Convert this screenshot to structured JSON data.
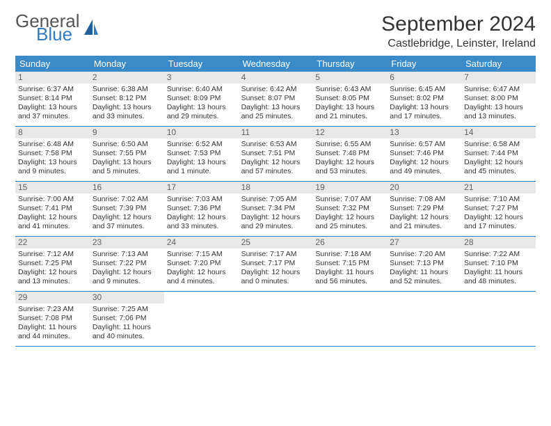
{
  "logo": {
    "general": "General",
    "blue": "Blue"
  },
  "title": "September 2024",
  "location": "Castlebridge, Leinster, Ireland",
  "colors": {
    "header_bg": "#3b8bc9",
    "accent": "#2d7cc1",
    "daynum_bg": "#e8e8e8",
    "text": "#333333"
  },
  "day_names": [
    "Sunday",
    "Monday",
    "Tuesday",
    "Wednesday",
    "Thursday",
    "Friday",
    "Saturday"
  ],
  "days": [
    {
      "n": 1,
      "sunrise": "6:37 AM",
      "sunset": "8:14 PM",
      "daylight": "13 hours and 37 minutes."
    },
    {
      "n": 2,
      "sunrise": "6:38 AM",
      "sunset": "8:12 PM",
      "daylight": "13 hours and 33 minutes."
    },
    {
      "n": 3,
      "sunrise": "6:40 AM",
      "sunset": "8:09 PM",
      "daylight": "13 hours and 29 minutes."
    },
    {
      "n": 4,
      "sunrise": "6:42 AM",
      "sunset": "8:07 PM",
      "daylight": "13 hours and 25 minutes."
    },
    {
      "n": 5,
      "sunrise": "6:43 AM",
      "sunset": "8:05 PM",
      "daylight": "13 hours and 21 minutes."
    },
    {
      "n": 6,
      "sunrise": "6:45 AM",
      "sunset": "8:02 PM",
      "daylight": "13 hours and 17 minutes."
    },
    {
      "n": 7,
      "sunrise": "6:47 AM",
      "sunset": "8:00 PM",
      "daylight": "13 hours and 13 minutes."
    },
    {
      "n": 8,
      "sunrise": "6:48 AM",
      "sunset": "7:58 PM",
      "daylight": "13 hours and 9 minutes."
    },
    {
      "n": 9,
      "sunrise": "6:50 AM",
      "sunset": "7:55 PM",
      "daylight": "13 hours and 5 minutes."
    },
    {
      "n": 10,
      "sunrise": "6:52 AM",
      "sunset": "7:53 PM",
      "daylight": "13 hours and 1 minute."
    },
    {
      "n": 11,
      "sunrise": "6:53 AM",
      "sunset": "7:51 PM",
      "daylight": "12 hours and 57 minutes."
    },
    {
      "n": 12,
      "sunrise": "6:55 AM",
      "sunset": "7:48 PM",
      "daylight": "12 hours and 53 minutes."
    },
    {
      "n": 13,
      "sunrise": "6:57 AM",
      "sunset": "7:46 PM",
      "daylight": "12 hours and 49 minutes."
    },
    {
      "n": 14,
      "sunrise": "6:58 AM",
      "sunset": "7:44 PM",
      "daylight": "12 hours and 45 minutes."
    },
    {
      "n": 15,
      "sunrise": "7:00 AM",
      "sunset": "7:41 PM",
      "daylight": "12 hours and 41 minutes."
    },
    {
      "n": 16,
      "sunrise": "7:02 AM",
      "sunset": "7:39 PM",
      "daylight": "12 hours and 37 minutes."
    },
    {
      "n": 17,
      "sunrise": "7:03 AM",
      "sunset": "7:36 PM",
      "daylight": "12 hours and 33 minutes."
    },
    {
      "n": 18,
      "sunrise": "7:05 AM",
      "sunset": "7:34 PM",
      "daylight": "12 hours and 29 minutes."
    },
    {
      "n": 19,
      "sunrise": "7:07 AM",
      "sunset": "7:32 PM",
      "daylight": "12 hours and 25 minutes."
    },
    {
      "n": 20,
      "sunrise": "7:08 AM",
      "sunset": "7:29 PM",
      "daylight": "12 hours and 21 minutes."
    },
    {
      "n": 21,
      "sunrise": "7:10 AM",
      "sunset": "7:27 PM",
      "daylight": "12 hours and 17 minutes."
    },
    {
      "n": 22,
      "sunrise": "7:12 AM",
      "sunset": "7:25 PM",
      "daylight": "12 hours and 13 minutes."
    },
    {
      "n": 23,
      "sunrise": "7:13 AM",
      "sunset": "7:22 PM",
      "daylight": "12 hours and 9 minutes."
    },
    {
      "n": 24,
      "sunrise": "7:15 AM",
      "sunset": "7:20 PM",
      "daylight": "12 hours and 4 minutes."
    },
    {
      "n": 25,
      "sunrise": "7:17 AM",
      "sunset": "7:17 PM",
      "daylight": "12 hours and 0 minutes."
    },
    {
      "n": 26,
      "sunrise": "7:18 AM",
      "sunset": "7:15 PM",
      "daylight": "11 hours and 56 minutes."
    },
    {
      "n": 27,
      "sunrise": "7:20 AM",
      "sunset": "7:13 PM",
      "daylight": "11 hours and 52 minutes."
    },
    {
      "n": 28,
      "sunrise": "7:22 AM",
      "sunset": "7:10 PM",
      "daylight": "11 hours and 48 minutes."
    },
    {
      "n": 29,
      "sunrise": "7:23 AM",
      "sunset": "7:08 PM",
      "daylight": "11 hours and 44 minutes."
    },
    {
      "n": 30,
      "sunrise": "7:25 AM",
      "sunset": "7:06 PM",
      "daylight": "11 hours and 40 minutes."
    }
  ],
  "labels": {
    "sunrise": "Sunrise:",
    "sunset": "Sunset:",
    "daylight": "Daylight:"
  }
}
